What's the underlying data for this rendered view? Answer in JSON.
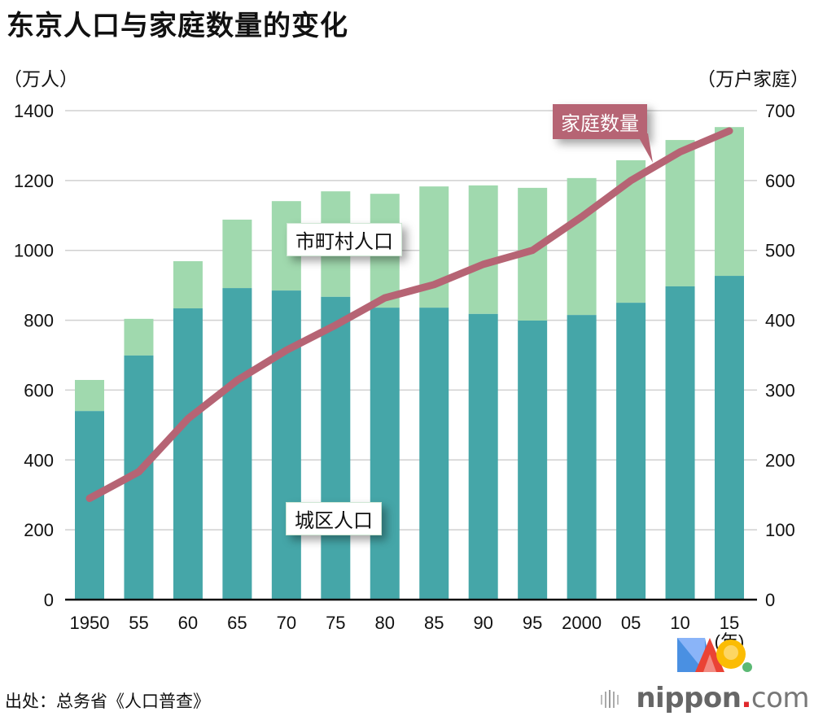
{
  "title": "东京人口与家庭数量的变化",
  "source": "出处：总务省《人口普查》",
  "brand": {
    "name": "nippon",
    "dot": ".",
    "suffix": "com"
  },
  "colors": {
    "ward": "#45a6a8",
    "municipal": "#a0d9ae",
    "households": "#b66474",
    "grid": "#d0d0d0",
    "axis": "#111111"
  },
  "chart_data": {
    "type": "bar",
    "stacked": true,
    "title": "东京人口与家庭数量的变化",
    "categories": [
      "1950",
      "55",
      "60",
      "65",
      "70",
      "75",
      "80",
      "85",
      "90",
      "95",
      "2000",
      "05",
      "10",
      "15"
    ],
    "x_unit_label": "(年)",
    "y_left": {
      "label": "（万人）",
      "range": [
        0,
        1400
      ],
      "ticks": [
        0,
        200,
        400,
        600,
        800,
        1000,
        1200,
        1400
      ]
    },
    "y_right": {
      "label": "（万户家庭）",
      "range": [
        0,
        700
      ],
      "ticks": [
        0,
        100,
        200,
        300,
        400,
        500,
        600,
        700
      ]
    },
    "grid": true,
    "series": [
      {
        "name": "城区人口",
        "type": "bar",
        "axis": "left",
        "values": [
          540,
          699,
          834,
          892,
          885,
          867,
          836,
          836,
          818,
          799,
          815,
          850,
          897,
          927
        ]
      },
      {
        "name": "市町村人口",
        "type": "bar",
        "axis": "left",
        "values": [
          89,
          105,
          135,
          196,
          256,
          302,
          326,
          347,
          368,
          380,
          392,
          408,
          419,
          426
        ]
      },
      {
        "name": "家庭数量",
        "type": "line",
        "axis": "right",
        "values": [
          145,
          183,
          259,
          314,
          357,
          393,
          432,
          451,
          480,
          500,
          548,
          600,
          641,
          671
        ]
      }
    ],
    "annotations": [
      {
        "text": "城区人口",
        "series": "城区人口"
      },
      {
        "text": "市町村人口",
        "series": "市町村人口"
      },
      {
        "text": "家庭数量",
        "series": "家庭数量"
      }
    ]
  }
}
